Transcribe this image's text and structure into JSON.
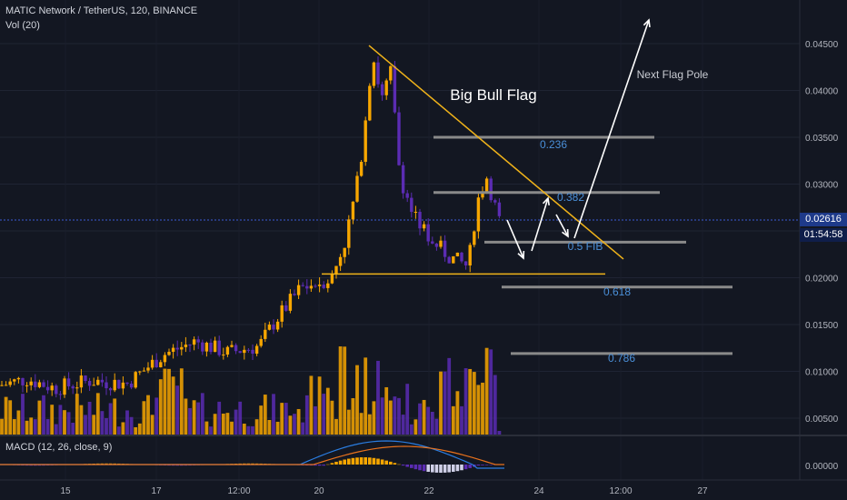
{
  "header": {
    "title": "MATIC Network / TetherUS, 120, BINANCE",
    "volume_label": "Vol (20)",
    "macd_label": "MACD (12, 26, close, 9)"
  },
  "price_tag": {
    "price": "0.02616",
    "countdown": "01:54:58"
  },
  "colors": {
    "bull": "#f7a600",
    "bear": "#5b2cb3",
    "trendline": "#f0b31a",
    "fib": "#8a8a8a",
    "arrow": "#ffffff",
    "fib_text": "#4a8fd8",
    "macd_line": "#2a7de1",
    "signal_line": "#e8711c"
  },
  "chart_data": {
    "type": "candlestick",
    "y_axis": {
      "range": [
        0.002,
        0.047
      ],
      "ticks": [
        "0.04500",
        "0.04000",
        "0.03500",
        "0.03000",
        "0.02500",
        "0.02000",
        "0.01500",
        "0.01000",
        "0.00500"
      ]
    },
    "macd_axis": {
      "ticks": [
        "0.00000"
      ]
    },
    "x_axis": {
      "ticks": [
        "15",
        "17",
        "12:00",
        "20",
        "22",
        "24",
        "12:00",
        "27"
      ]
    },
    "annotations": {
      "title": "Big  Bull Flag",
      "flag_pole": "Next Flag Pole",
      "fib_levels": [
        {
          "label": "0.236",
          "price": 0.035
        },
        {
          "label": "0.382",
          "price": 0.0291
        },
        {
          "label": "0.5 FIB",
          "price": 0.0238
        },
        {
          "label": "0.618",
          "price": 0.019
        },
        {
          "label": "0.786",
          "price": 0.0119
        }
      ],
      "support_price": 0.0204,
      "trendline": [
        [
          0.0448,
          0.022
        ]
      ]
    }
  }
}
